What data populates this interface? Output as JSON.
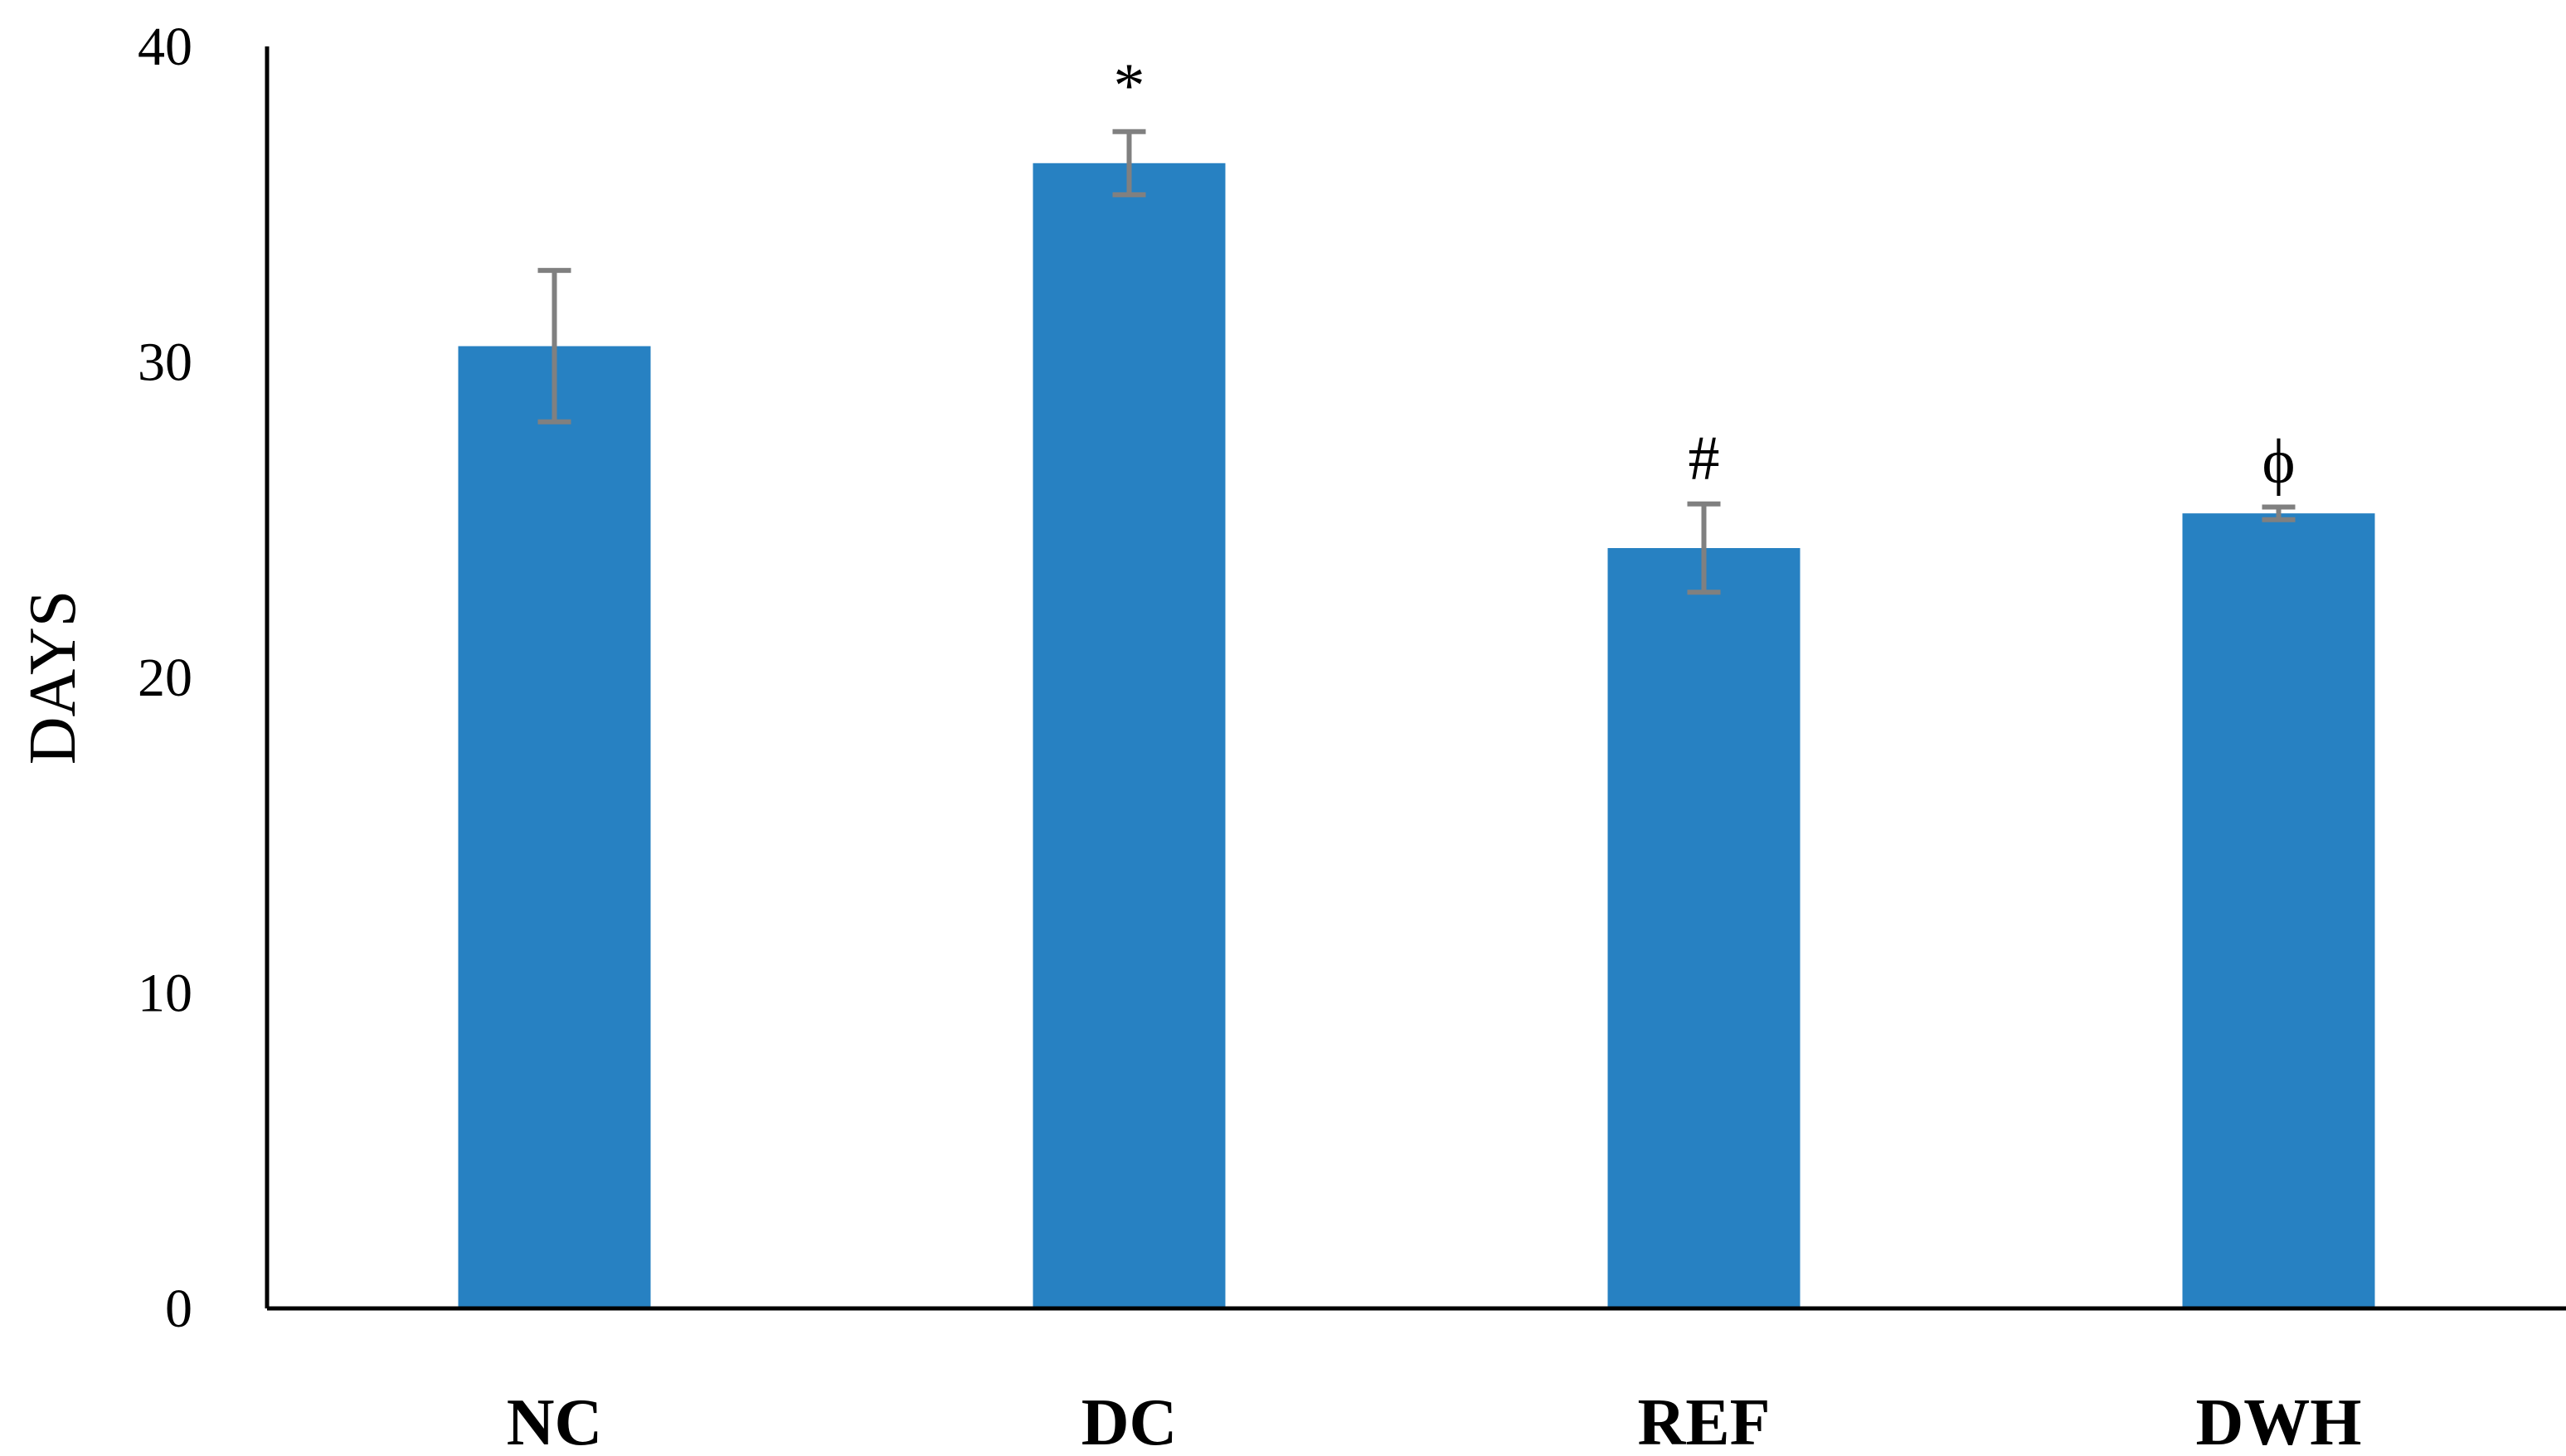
{
  "chart_data": {
    "type": "bar",
    "title": "",
    "xlabel": "",
    "ylabel": "DAYS",
    "ylim": [
      0,
      40
    ],
    "yticks": [
      0,
      10,
      20,
      30,
      40
    ],
    "grid": false,
    "categories": [
      "NC",
      "DC",
      "REF",
      "DWH"
    ],
    "values": [
      30.5,
      36.3,
      24.1,
      25.2
    ],
    "errors": [
      2.4,
      1.0,
      1.4,
      0.2
    ],
    "annotations": [
      "",
      "*",
      "#",
      "ϕ"
    ],
    "bar_color": "#2781C2",
    "error_color": "#808080",
    "axis_color": "#000000"
  }
}
